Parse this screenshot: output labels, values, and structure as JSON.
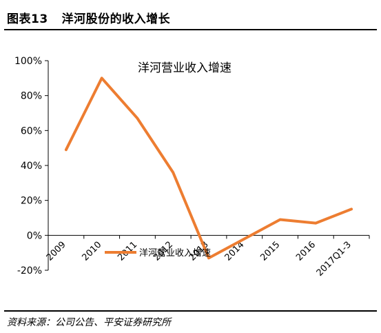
{
  "figure": {
    "label": "图表13",
    "title": "洋河股份的收入增长",
    "source": "资料来源：公司公告、平安证券研究所"
  },
  "chart_data": {
    "type": "line",
    "title": "洋河营业收入增速",
    "categories": [
      "2009",
      "2010",
      "2011",
      "2012",
      "2013",
      "2014",
      "2015",
      "2016",
      "2017Q1-3"
    ],
    "y_tick_labels": [
      "100%",
      "80%",
      "60%",
      "40%",
      "20%",
      "0%",
      "-20%"
    ],
    "ylim": [
      -20,
      100
    ],
    "y_ticks": [
      -20,
      0,
      20,
      40,
      60,
      80,
      100
    ],
    "series": [
      {
        "name": "洋河营业收入增速",
        "color": "#ED7D31",
        "values": [
          49,
          90,
          67,
          36,
          -13,
          -2,
          9,
          7,
          15
        ]
      }
    ],
    "legend_position": "bottom-left",
    "grid": false
  }
}
